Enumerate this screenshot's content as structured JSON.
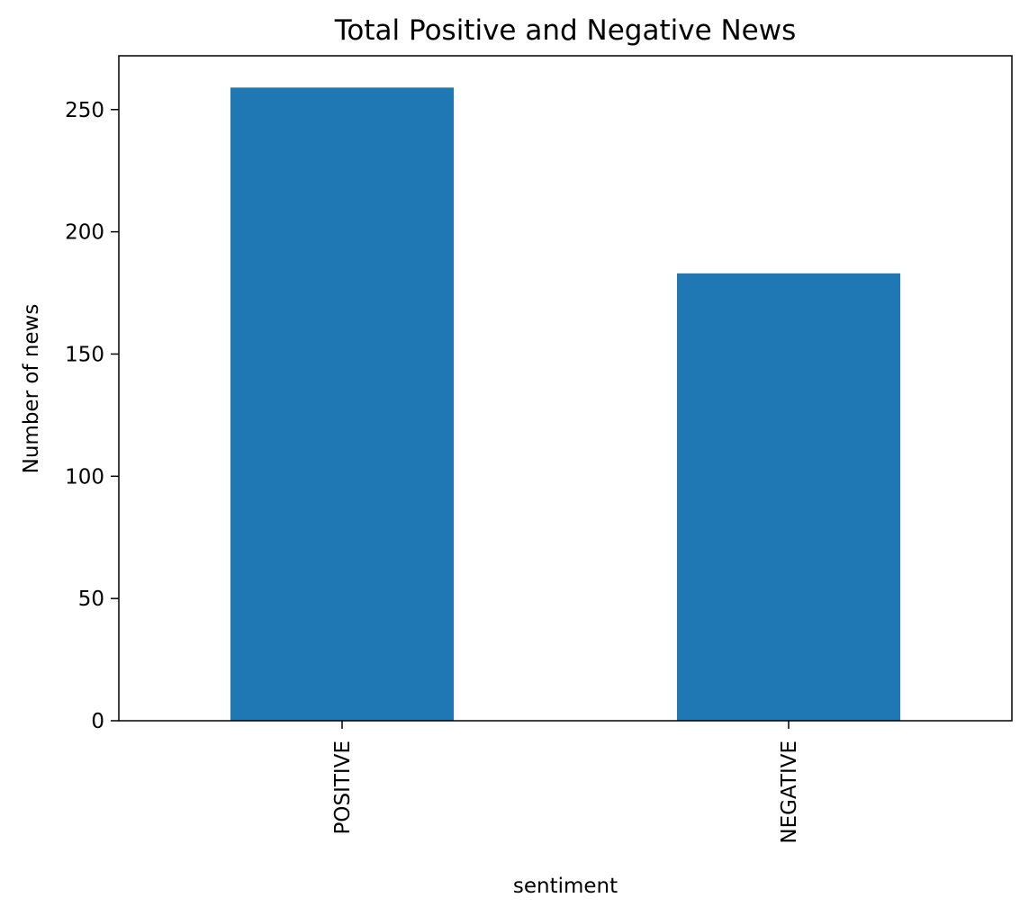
{
  "chart_data": {
    "type": "bar",
    "title": "Total Positive and Negative News",
    "xlabel": "sentiment",
    "ylabel": "Number of news",
    "categories": [
      "POSITIVE",
      "NEGATIVE"
    ],
    "values": [
      259,
      183
    ],
    "ylim": [
      0,
      272
    ],
    "yticks": [
      0,
      50,
      100,
      150,
      200,
      250
    ],
    "grid": false,
    "legend": "none",
    "bar_color": "#1f77b4"
  }
}
